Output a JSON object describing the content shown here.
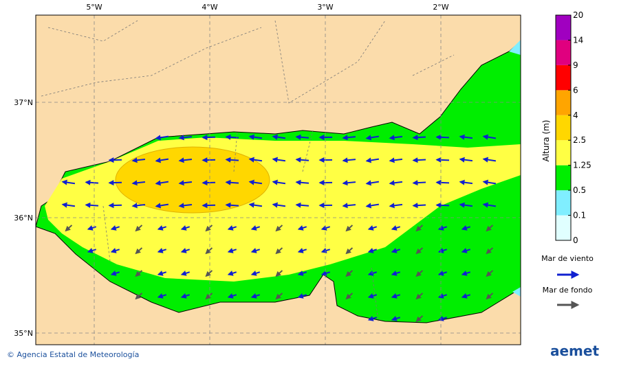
{
  "map": {
    "lon_labels": [
      "5°W",
      "4°W",
      "3°W",
      "2°W"
    ],
    "lat_labels": [
      "37°N",
      "36°N",
      "35°N"
    ]
  },
  "colorbar": {
    "title": "Altura (m)",
    "ticks": [
      0,
      0.1,
      0.5,
      1.25,
      2.5,
      4,
      6,
      9,
      14,
      20
    ],
    "colors": [
      "#e0ffff",
      "#80eeff",
      "#00ee00",
      "#ffff44",
      "#ffd700",
      "#ffa500",
      "#ff0000",
      "#e0007f",
      "#a000c0"
    ]
  },
  "legend": {
    "wind_sea": "Mar de viento",
    "swell": "Mar de fondo"
  },
  "footer": {
    "credit": "© Agencia Estatal de Meteorología",
    "logo": "aemet"
  }
}
